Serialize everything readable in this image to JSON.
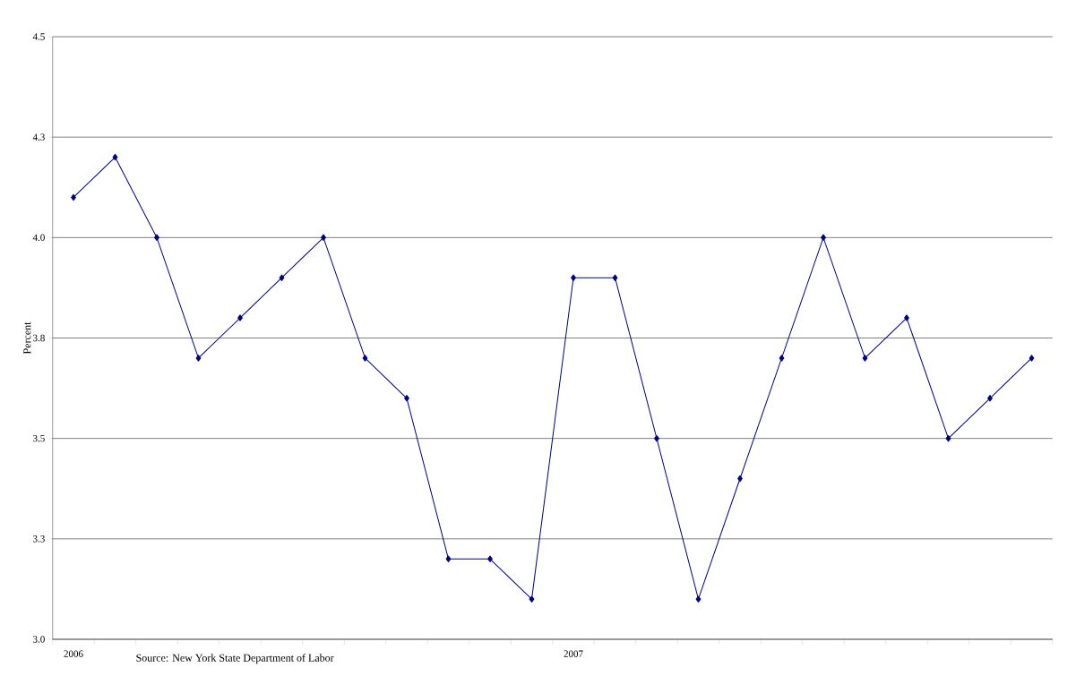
{
  "chart_data": {
    "type": "line",
    "ylabel": "Percent",
    "categories": [
      "2006",
      null,
      null,
      null,
      null,
      null,
      null,
      null,
      null,
      null,
      null,
      null,
      "2007",
      null,
      null,
      null,
      null,
      null,
      null,
      null,
      null,
      null,
      null,
      null
    ],
    "series": [
      {
        "color": "#000080",
        "values": [
          4.1,
          4.2,
          4.0,
          3.7,
          3.8,
          3.9,
          4.0,
          3.7,
          3.6,
          3.2,
          3.2,
          3.1,
          3.9,
          3.9,
          3.5,
          3.1,
          3.4,
          3.7,
          4.0,
          3.7,
          3.8,
          3.5,
          3.6,
          3.7
        ]
      }
    ],
    "ylim": [
      3.0,
      4.5
    ],
    "yticks": [
      {
        "value": 3.0,
        "label": "3.0"
      },
      {
        "value": 3.25,
        "label": "3.3"
      },
      {
        "value": 3.5,
        "label": "3.5"
      },
      {
        "value": 3.75,
        "label": "3.8"
      },
      {
        "value": 4.0,
        "label": "4.0"
      },
      {
        "value": 4.25,
        "label": "4.3"
      },
      {
        "value": 4.5,
        "label": "4.5"
      }
    ],
    "grid": "y",
    "marker": "diamond",
    "line_style": "solid",
    "annotations": [
      "Source: New York State Department of Labor"
    ]
  }
}
